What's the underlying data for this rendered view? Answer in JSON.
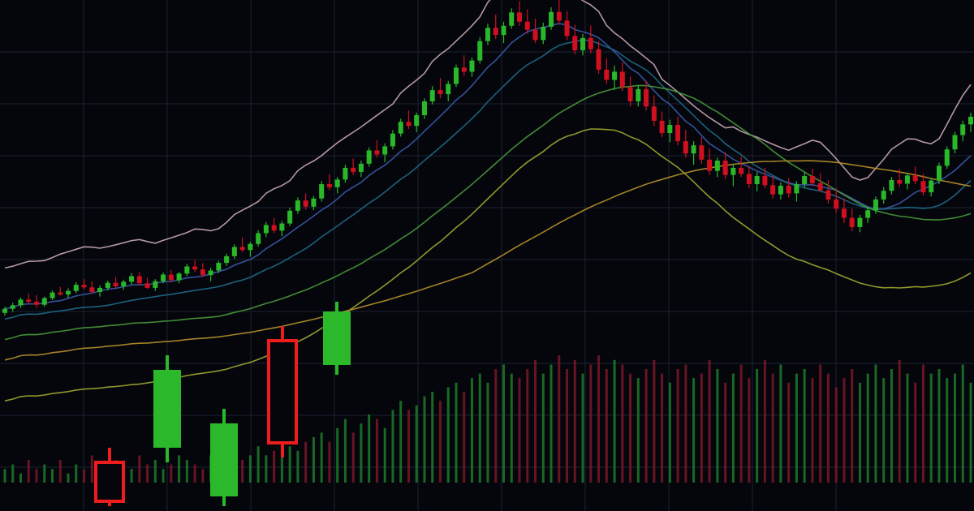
{
  "colors": {
    "background": "#04060c",
    "grid": "#1c2230",
    "up": "#2ab82a",
    "down": "#d01020",
    "up_volume": "#1f7a2a",
    "down_volume": "#7a1828",
    "big_up": "#2bb82b",
    "big_down": "#ee1c1c",
    "ma_fast": "#c9a8b4",
    "ma_blue": "#3a5aa8",
    "ma_teal": "#1f6a8a",
    "ma_green": "#4a9a3a",
    "ma_yellow": "#a0a830",
    "ma_orange": "#b8902a"
  },
  "chart_data": {
    "type": "candlestick",
    "title": "",
    "xlabel": "",
    "ylabel": "",
    "grid": true,
    "legend": "none",
    "ylim": [
      0,
      100
    ],
    "series": [
      {
        "kind": "candles",
        "values_ohlc": [
          [
            34.0,
            35.2,
            33.5,
            34.8
          ],
          [
            34.8,
            36.0,
            34.2,
            35.5
          ],
          [
            35.5,
            37.0,
            35.0,
            36.6
          ],
          [
            36.6,
            37.8,
            35.8,
            36.2
          ],
          [
            36.2,
            37.5,
            35.0,
            35.6
          ],
          [
            35.6,
            37.2,
            35.2,
            36.9
          ],
          [
            36.9,
            38.4,
            36.5,
            38.0
          ],
          [
            38.0,
            39.1,
            37.4,
            37.6
          ],
          [
            37.6,
            38.8,
            36.9,
            38.3
          ],
          [
            38.3,
            40.0,
            37.9,
            39.5
          ],
          [
            39.5,
            40.6,
            38.6,
            39.0
          ],
          [
            39.0,
            40.2,
            37.8,
            38.1
          ],
          [
            38.1,
            39.4,
            37.2,
            38.9
          ],
          [
            38.9,
            40.3,
            38.4,
            39.9
          ],
          [
            39.9,
            41.0,
            38.8,
            39.2
          ],
          [
            39.2,
            40.5,
            38.5,
            40.1
          ],
          [
            40.1,
            41.8,
            39.6,
            41.2
          ],
          [
            41.2,
            42.0,
            39.4,
            39.8
          ],
          [
            39.8,
            40.9,
            38.7,
            38.9
          ],
          [
            38.9,
            40.6,
            38.3,
            40.2
          ],
          [
            40.2,
            41.9,
            39.8,
            41.5
          ],
          [
            41.5,
            42.4,
            40.0,
            40.4
          ],
          [
            40.4,
            42.0,
            39.8,
            41.7
          ],
          [
            41.7,
            43.6,
            41.2,
            43.1
          ],
          [
            43.1,
            44.4,
            42.0,
            42.5
          ],
          [
            42.5,
            43.7,
            41.0,
            41.4
          ],
          [
            41.4,
            42.8,
            40.2,
            42.3
          ],
          [
            42.3,
            44.2,
            41.8,
            43.8
          ],
          [
            43.8,
            45.6,
            43.2,
            45.1
          ],
          [
            45.1,
            47.4,
            44.6,
            46.9
          ],
          [
            46.9,
            48.8,
            45.9,
            46.3
          ],
          [
            46.3,
            47.9,
            45.0,
            47.5
          ],
          [
            47.5,
            50.2,
            47.0,
            49.6
          ],
          [
            49.6,
            51.8,
            48.8,
            51.2
          ],
          [
            51.2,
            52.6,
            49.6,
            50.1
          ],
          [
            50.1,
            52.0,
            49.0,
            51.5
          ],
          [
            51.5,
            54.6,
            51.0,
            54.0
          ],
          [
            54.0,
            56.6,
            53.4,
            56.0
          ],
          [
            56.0,
            57.4,
            54.2,
            54.8
          ],
          [
            54.8,
            56.9,
            54.1,
            56.4
          ],
          [
            56.4,
            59.8,
            55.8,
            59.2
          ],
          [
            59.2,
            61.2,
            58.0,
            58.6
          ],
          [
            58.6,
            60.6,
            57.4,
            60.1
          ],
          [
            60.1,
            63.0,
            59.5,
            62.4
          ],
          [
            62.4,
            64.2,
            61.0,
            61.6
          ],
          [
            61.6,
            63.8,
            60.6,
            63.2
          ],
          [
            63.2,
            66.4,
            62.6,
            65.8
          ],
          [
            65.8,
            67.8,
            64.4,
            65.0
          ],
          [
            65.0,
            67.2,
            63.5,
            66.6
          ],
          [
            66.6,
            69.8,
            66.0,
            69.1
          ],
          [
            69.1,
            72.0,
            68.5,
            71.4
          ],
          [
            71.4,
            73.6,
            70.0,
            70.6
          ],
          [
            70.6,
            73.2,
            69.4,
            72.7
          ],
          [
            72.7,
            76.0,
            72.0,
            75.4
          ],
          [
            75.4,
            78.4,
            74.8,
            77.6
          ],
          [
            77.6,
            80.0,
            76.0,
            76.8
          ],
          [
            76.8,
            79.4,
            75.4,
            78.8
          ],
          [
            78.8,
            82.6,
            78.2,
            82.0
          ],
          [
            82.0,
            84.4,
            80.4,
            81.2
          ],
          [
            81.2,
            84.0,
            80.2,
            83.4
          ],
          [
            83.4,
            88.0,
            82.8,
            87.2
          ],
          [
            87.2,
            90.6,
            86.4,
            89.8
          ],
          [
            89.8,
            92.4,
            87.6,
            88.4
          ],
          [
            88.4,
            91.0,
            86.8,
            90.2
          ],
          [
            90.2,
            93.6,
            89.6,
            92.8
          ],
          [
            92.8,
            95.0,
            90.2,
            91.0
          ],
          [
            91.0,
            93.4,
            88.6,
            89.4
          ],
          [
            89.4,
            91.6,
            86.8,
            87.4
          ],
          [
            87.4,
            90.8,
            86.6,
            90.0
          ],
          [
            90.0,
            93.8,
            89.4,
            92.9
          ],
          [
            92.9,
            95.4,
            90.4,
            91.2
          ],
          [
            91.2,
            93.0,
            87.4,
            88.2
          ],
          [
            88.2,
            90.4,
            84.6,
            85.4
          ],
          [
            85.4,
            88.6,
            84.4,
            87.8
          ],
          [
            87.8,
            90.2,
            84.8,
            85.6
          ],
          [
            85.6,
            87.2,
            80.8,
            81.6
          ],
          [
            81.6,
            83.8,
            78.8,
            79.6
          ],
          [
            79.6,
            82.4,
            77.6,
            81.2
          ],
          [
            81.2,
            83.0,
            77.4,
            78.2
          ],
          [
            78.2,
            80.2,
            74.4,
            75.4
          ],
          [
            75.4,
            78.6,
            74.4,
            77.8
          ],
          [
            77.8,
            79.4,
            73.6,
            74.4
          ],
          [
            74.4,
            76.6,
            70.6,
            71.6
          ],
          [
            71.6,
            73.4,
            68.4,
            69.2
          ],
          [
            69.2,
            71.8,
            67.4,
            70.8
          ],
          [
            70.8,
            72.4,
            66.8,
            67.6
          ],
          [
            67.6,
            69.8,
            64.4,
            65.2
          ],
          [
            65.2,
            67.6,
            63.0,
            66.8
          ],
          [
            66.8,
            68.4,
            63.2,
            64.0
          ],
          [
            64.0,
            66.2,
            61.0,
            61.8
          ],
          [
            61.8,
            64.4,
            60.6,
            63.8
          ],
          [
            63.8,
            65.4,
            60.2,
            61.0
          ],
          [
            61.0,
            63.2,
            58.8,
            62.4
          ],
          [
            62.4,
            64.6,
            60.6,
            61.2
          ],
          [
            61.2,
            62.8,
            58.4,
            59.2
          ],
          [
            59.2,
            61.6,
            57.8,
            60.8
          ],
          [
            60.8,
            62.4,
            58.4,
            59.0
          ],
          [
            59.0,
            60.8,
            56.4,
            57.2
          ],
          [
            57.2,
            59.6,
            56.2,
            58.9
          ],
          [
            58.9,
            60.4,
            56.6,
            57.4
          ],
          [
            57.4,
            59.8,
            55.8,
            59.2
          ],
          [
            59.2,
            61.6,
            58.4,
            60.8
          ],
          [
            60.8,
            62.2,
            58.8,
            59.4
          ],
          [
            59.4,
            61.4,
            57.6,
            58.0
          ],
          [
            58.0,
            60.0,
            55.4,
            56.2
          ],
          [
            56.2,
            58.4,
            53.6,
            54.4
          ],
          [
            54.4,
            56.4,
            51.6,
            52.6
          ],
          [
            52.6,
            54.4,
            50.0,
            50.8
          ],
          [
            50.8,
            53.2,
            49.8,
            52.6
          ],
          [
            52.6,
            54.8,
            51.6,
            54.1
          ],
          [
            54.1,
            56.8,
            53.4,
            56.2
          ],
          [
            56.2,
            58.6,
            55.4,
            57.9
          ],
          [
            57.9,
            60.6,
            57.2,
            60.0
          ],
          [
            60.0,
            62.2,
            58.6,
            59.3
          ],
          [
            59.3,
            61.4,
            58.2,
            60.9
          ],
          [
            60.9,
            62.6,
            59.2,
            59.8
          ],
          [
            59.8,
            61.2,
            57.0,
            57.6
          ],
          [
            57.6,
            60.4,
            56.8,
            59.9
          ],
          [
            59.9,
            63.4,
            59.2,
            62.8
          ],
          [
            62.8,
            66.6,
            62.2,
            66.0
          ],
          [
            66.0,
            69.4,
            65.2,
            68.8
          ],
          [
            68.8,
            71.6,
            67.6,
            70.9
          ],
          [
            70.9,
            73.2,
            69.4,
            72.4
          ]
        ]
      },
      {
        "kind": "volume",
        "values": [
          3,
          4,
          2,
          5,
          3,
          4,
          3,
          5,
          2,
          4,
          3,
          6,
          4,
          3,
          5,
          4,
          3,
          6,
          4,
          5,
          3,
          4,
          6,
          5,
          4,
          3,
          6,
          5,
          4,
          7,
          5,
          6,
          8,
          6,
          7,
          9,
          8,
          7,
          9,
          10,
          11,
          9,
          12,
          14,
          11,
          13,
          15,
          14,
          12,
          16,
          18,
          16,
          17,
          19,
          20,
          18,
          21,
          22,
          20,
          23,
          24,
          22,
          25,
          26,
          24,
          23,
          25,
          27,
          24,
          26,
          28,
          25,
          27,
          24,
          26,
          28,
          25,
          27,
          26,
          24,
          23,
          25,
          27,
          24,
          22,
          25,
          26,
          23,
          24,
          27,
          25,
          22,
          24,
          26,
          23,
          25,
          27,
          24,
          26,
          22,
          24,
          25,
          23,
          26,
          24,
          21,
          23,
          25,
          22,
          24,
          26,
          23,
          25,
          27,
          24,
          22,
          26,
          24,
          25,
          23,
          24,
          26,
          22
        ]
      }
    ],
    "moving_averages": [
      "ma_fast",
      "ma_blue",
      "ma_teal",
      "ma_green",
      "ma_yellow",
      "ma_orange"
    ],
    "foreground_candles": [
      {
        "color": "down",
        "open": 5.0,
        "close": -3.0,
        "high": 8.0,
        "low": -4.0
      },
      {
        "color": "up",
        "open": 8.0,
        "close": 24.0,
        "high": 27.0,
        "low": 5.0
      },
      {
        "color": "up",
        "open": -2.0,
        "close": 13.0,
        "high": 16.0,
        "low": -4.0
      },
      {
        "color": "down",
        "open": 9.0,
        "close": 30.0,
        "high": 33.0,
        "low": 6.0
      },
      {
        "color": "up",
        "open": 25.0,
        "close": 36.0,
        "high": 38.0,
        "low": 23.0
      }
    ]
  }
}
